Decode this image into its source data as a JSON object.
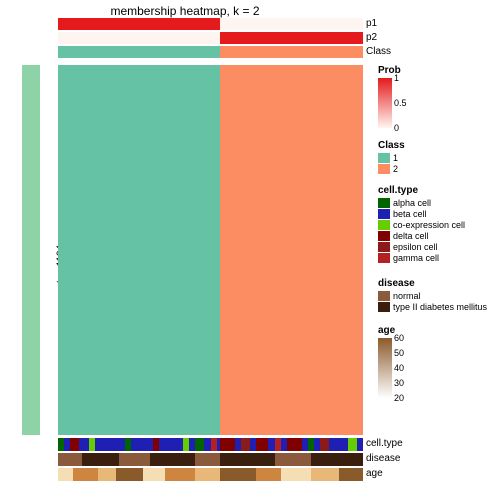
{
  "title": "membership heatmap, k = 2",
  "ylabel_outer": "50 x 1 random samplings",
  "ylabel_inner": "top 1194 rows",
  "top_annotations": {
    "p1": {
      "label": "p1",
      "segments": [
        {
          "w": 0.53,
          "color": "#e41a1c"
        },
        {
          "w": 0.47,
          "color": "#fff5f0"
        }
      ]
    },
    "p2": {
      "label": "p2",
      "segments": [
        {
          "w": 0.53,
          "color": "#fff5f0"
        },
        {
          "w": 0.47,
          "color": "#e41a1c"
        }
      ]
    },
    "cls": {
      "label": "Class",
      "segments": [
        {
          "w": 0.53,
          "color": "#66c2a5"
        },
        {
          "w": 0.47,
          "color": "#fc8d62"
        }
      ]
    }
  },
  "heatmap": {
    "left_color": "#66c2a5",
    "right_color": "#fc8d62",
    "split": 0.53
  },
  "sidebar_color": "#8dd3a7",
  "bottom_annotations": {
    "celltype": {
      "label": "cell.type",
      "bg": "#1f1fb4"
    },
    "disease": {
      "label": "disease",
      "bg": "#5a3319"
    },
    "age": {
      "label": "age",
      "bg": "#d48a3a"
    }
  },
  "celltype_stripes": [
    {
      "x": 0.0,
      "w": 0.02,
      "c": "#006400"
    },
    {
      "x": 0.04,
      "w": 0.03,
      "c": "#800000"
    },
    {
      "x": 0.1,
      "w": 0.02,
      "c": "#66cd00"
    },
    {
      "x": 0.14,
      "w": 0.05,
      "c": "#1f1fb4"
    },
    {
      "x": 0.22,
      "w": 0.02,
      "c": "#006400"
    },
    {
      "x": 0.26,
      "w": 0.03,
      "c": "#1f1fb4"
    },
    {
      "x": 0.31,
      "w": 0.02,
      "c": "#800000"
    },
    {
      "x": 0.35,
      "w": 0.04,
      "c": "#1f1fb4"
    },
    {
      "x": 0.41,
      "w": 0.02,
      "c": "#66cd00"
    },
    {
      "x": 0.45,
      "w": 0.03,
      "c": "#006400"
    },
    {
      "x": 0.5,
      "w": 0.02,
      "c": "#b22222"
    },
    {
      "x": 0.53,
      "w": 0.05,
      "c": "#800000"
    },
    {
      "x": 0.6,
      "w": 0.03,
      "c": "#8b1a1a"
    },
    {
      "x": 0.65,
      "w": 0.04,
      "c": "#800000"
    },
    {
      "x": 0.71,
      "w": 0.02,
      "c": "#b22222"
    },
    {
      "x": 0.75,
      "w": 0.05,
      "c": "#800000"
    },
    {
      "x": 0.82,
      "w": 0.02,
      "c": "#006400"
    },
    {
      "x": 0.86,
      "w": 0.03,
      "c": "#8b1a1a"
    },
    {
      "x": 0.91,
      "w": 0.02,
      "c": "#1f1fb4"
    },
    {
      "x": 0.95,
      "w": 0.03,
      "c": "#66cd00"
    }
  ],
  "disease_stripes": [
    {
      "x": 0.0,
      "w": 0.08,
      "c": "#8b5a3c"
    },
    {
      "x": 0.08,
      "w": 0.12,
      "c": "#3b1f0e"
    },
    {
      "x": 0.2,
      "w": 0.1,
      "c": "#8b5a3c"
    },
    {
      "x": 0.3,
      "w": 0.15,
      "c": "#3b1f0e"
    },
    {
      "x": 0.45,
      "w": 0.08,
      "c": "#8b5a3c"
    },
    {
      "x": 0.53,
      "w": 0.18,
      "c": "#3b1f0e"
    },
    {
      "x": 0.71,
      "w": 0.12,
      "c": "#8b5a3c"
    },
    {
      "x": 0.83,
      "w": 0.17,
      "c": "#3b1f0e"
    }
  ],
  "age_stripes": [
    {
      "x": 0.0,
      "w": 0.05,
      "c": "#f5deb3"
    },
    {
      "x": 0.05,
      "w": 0.08,
      "c": "#cd853f"
    },
    {
      "x": 0.13,
      "w": 0.06,
      "c": "#e8b878"
    },
    {
      "x": 0.19,
      "w": 0.09,
      "c": "#8b5a2b"
    },
    {
      "x": 0.28,
      "w": 0.07,
      "c": "#f5deb3"
    },
    {
      "x": 0.35,
      "w": 0.1,
      "c": "#cd853f"
    },
    {
      "x": 0.45,
      "w": 0.08,
      "c": "#e8b878"
    },
    {
      "x": 0.53,
      "w": 0.12,
      "c": "#8b5a2b"
    },
    {
      "x": 0.65,
      "w": 0.08,
      "c": "#cd853f"
    },
    {
      "x": 0.73,
      "w": 0.1,
      "c": "#f5deb3"
    },
    {
      "x": 0.83,
      "w": 0.09,
      "c": "#e8b878"
    },
    {
      "x": 0.92,
      "w": 0.08,
      "c": "#8b5a2b"
    }
  ],
  "legends": {
    "prob": {
      "title": "Prob",
      "gradient_top": "#e41a1c",
      "gradient_bot": "#fff5f0",
      "ticks": [
        {
          "v": "1",
          "pos": 0
        },
        {
          "v": "0.5",
          "pos": 0.5
        },
        {
          "v": "0",
          "pos": 1
        }
      ]
    },
    "class": {
      "title": "Class",
      "items": [
        {
          "c": "#66c2a5",
          "l": "1"
        },
        {
          "c": "#fc8d62",
          "l": "2"
        }
      ]
    },
    "celltype": {
      "title": "cell.type",
      "items": [
        {
          "c": "#006400",
          "l": "alpha cell"
        },
        {
          "c": "#1f1fb4",
          "l": "beta cell"
        },
        {
          "c": "#66cd00",
          "l": "co-expression cell"
        },
        {
          "c": "#800000",
          "l": "delta cell"
        },
        {
          "c": "#8b1a1a",
          "l": "epsilon cell"
        },
        {
          "c": "#b22222",
          "l": "gamma cell"
        }
      ]
    },
    "disease": {
      "title": "disease",
      "items": [
        {
          "c": "#8b5a3c",
          "l": "normal"
        },
        {
          "c": "#3b1f0e",
          "l": "type II diabetes mellitus"
        }
      ]
    },
    "age": {
      "title": "age",
      "gradient_top": "#8b5a2b",
      "gradient_bot": "#ffffff",
      "ticks": [
        {
          "v": "60",
          "pos": 0
        },
        {
          "v": "50",
          "pos": 0.25
        },
        {
          "v": "40",
          "pos": 0.5
        },
        {
          "v": "30",
          "pos": 0.75
        },
        {
          "v": "20",
          "pos": 1
        }
      ]
    }
  }
}
